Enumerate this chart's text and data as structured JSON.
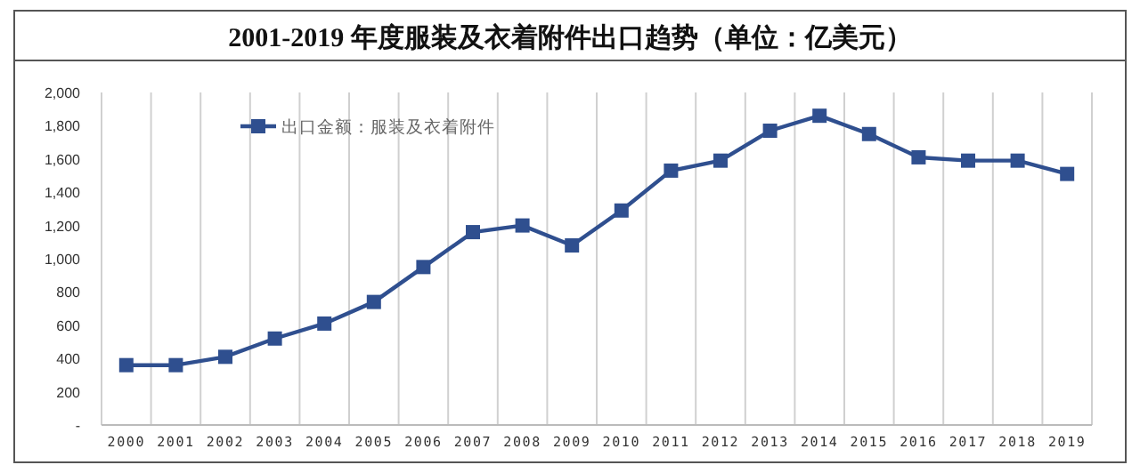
{
  "chart_data": {
    "type": "line",
    "title": "2001-2019 年度服装及衣着附件出口趋势（单位：亿美元）",
    "categories": [
      "2000",
      "2001",
      "2002",
      "2003",
      "2004",
      "2005",
      "2006",
      "2007",
      "2008",
      "2009",
      "2010",
      "2011",
      "2012",
      "2013",
      "2014",
      "2015",
      "2016",
      "2017",
      "2018",
      "2019"
    ],
    "series": [
      {
        "name": "出口金额：服装及衣着附件",
        "color": "#2f4f8f",
        "values": [
          360,
          360,
          410,
          520,
          610,
          740,
          950,
          1160,
          1200,
          1080,
          1290,
          1530,
          1590,
          1770,
          1860,
          1750,
          1610,
          1590,
          1590,
          1510
        ]
      }
    ],
    "ylim": [
      0,
      2000
    ],
    "yticks": [
      {
        "value": 0,
        "label": "-"
      },
      200,
      400,
      600,
      800,
      {
        "value": 1000,
        "label": "1,000"
      },
      {
        "value": 1200,
        "label": "1,200"
      },
      {
        "value": 1400,
        "label": "1,400"
      },
      {
        "value": 1600,
        "label": "1,600"
      },
      {
        "value": 1800,
        "label": "1,800"
      },
      {
        "value": 2000,
        "label": "2,000"
      }
    ],
    "grid": "x",
    "legend": "top left",
    "marker": "square",
    "line_style": "solid"
  }
}
